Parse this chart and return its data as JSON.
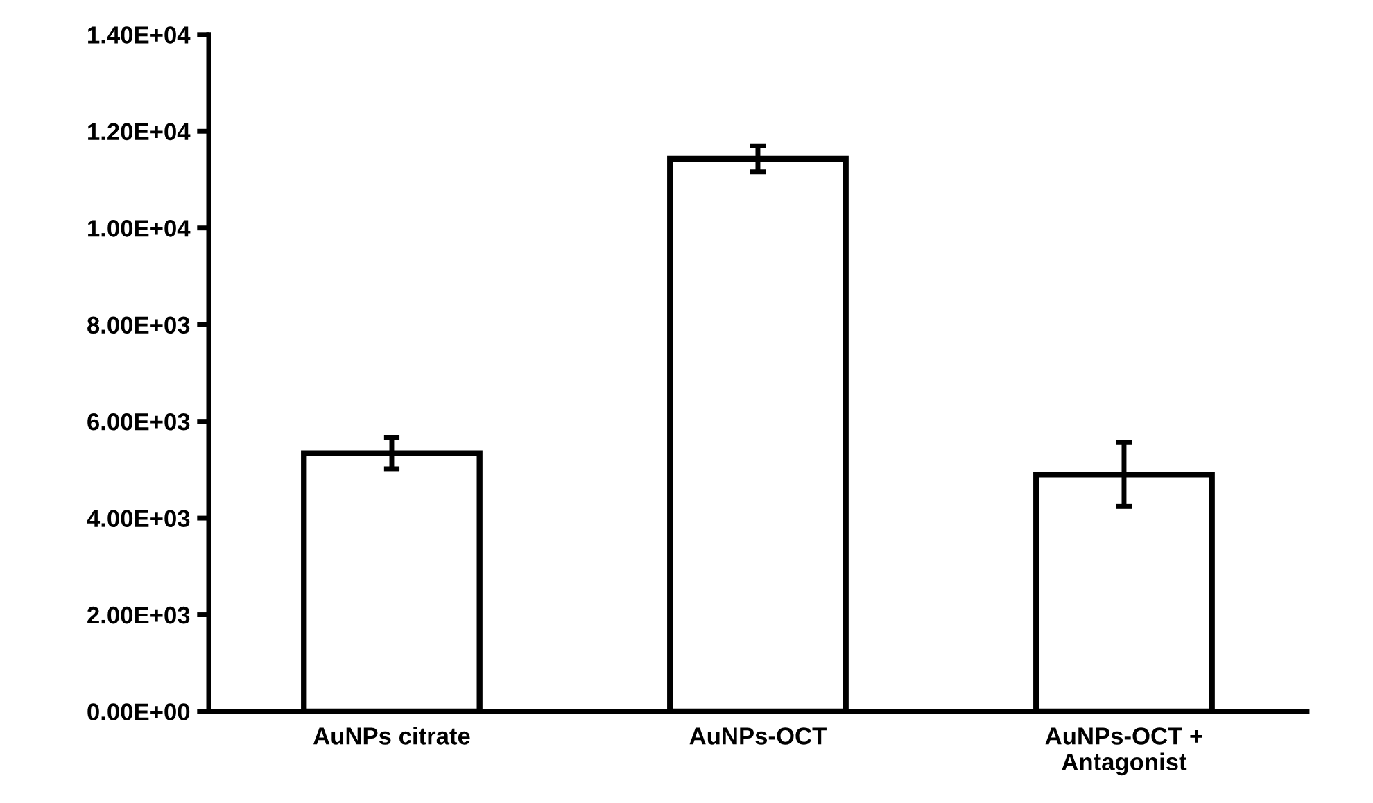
{
  "chart_data": {
    "type": "bar",
    "categories": [
      "AuNPs citrate",
      "AuNPs-OCT",
      "AuNPs-OCT +\nAntagonist"
    ],
    "series": [
      {
        "color": "#ffffff",
        "values": [
          5340,
          11430,
          4900
        ],
        "errors": [
          320,
          270,
          660
        ]
      }
    ],
    "ylim": [
      0,
      14000
    ],
    "yticks": [
      {
        "value": 0,
        "label": "0.00E+00"
      },
      {
        "value": 2000,
        "label": "2.00E+03"
      },
      {
        "value": 4000,
        "label": "4.00E+03"
      },
      {
        "value": 6000,
        "label": "6.00E+03"
      },
      {
        "value": 8000,
        "label": "8.00E+03"
      },
      {
        "value": 10000,
        "label": "1.00E+04"
      },
      {
        "value": 12000,
        "label": "1.20E+04"
      },
      {
        "value": 14000,
        "label": "1.40E+04"
      }
    ],
    "grid": false,
    "legend": false
  }
}
